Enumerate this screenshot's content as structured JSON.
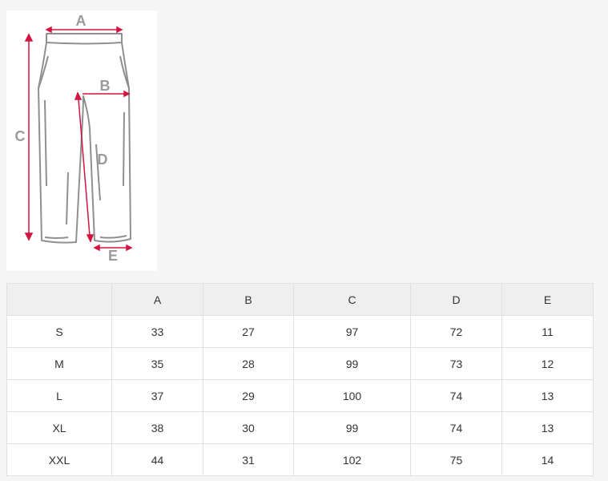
{
  "diagram": {
    "labels": [
      "A",
      "B",
      "C",
      "D",
      "E"
    ]
  },
  "table": {
    "columns": [
      "A",
      "B",
      "C",
      "D",
      "E"
    ],
    "rows": [
      [
        "S",
        33,
        27,
        97,
        72,
        11
      ],
      [
        "M",
        35,
        28,
        99,
        73,
        12
      ],
      [
        "L",
        37,
        29,
        100,
        74,
        13
      ],
      [
        "XL",
        38,
        30,
        99,
        74,
        13
      ],
      [
        "XXL",
        44,
        31,
        102,
        75,
        14
      ]
    ]
  }
}
